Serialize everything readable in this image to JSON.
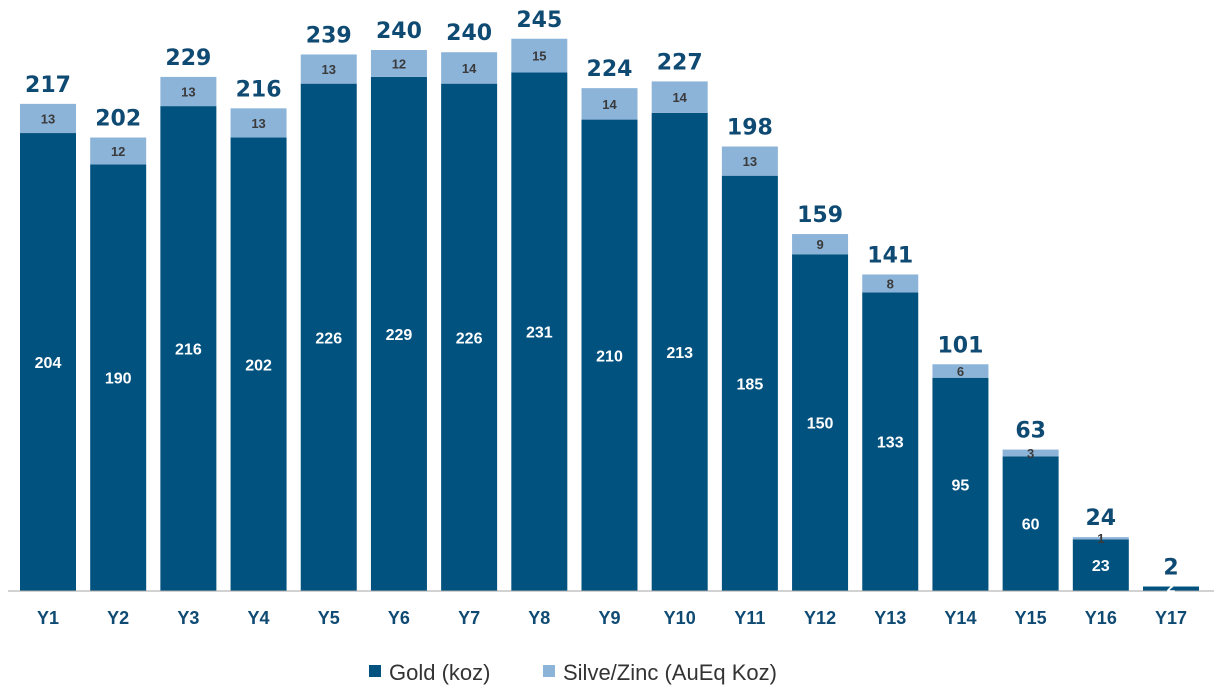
{
  "chart_data": {
    "type": "bar",
    "stacked": true,
    "categories": [
      "Y1",
      "Y2",
      "Y3",
      "Y4",
      "Y5",
      "Y6",
      "Y7",
      "Y8",
      "Y9",
      "Y10",
      "Y11",
      "Y12",
      "Y13",
      "Y14",
      "Y15",
      "Y16",
      "Y17"
    ],
    "series": [
      {
        "name": "Gold (koz)",
        "color": "#02527f",
        "values": [
          204,
          190,
          216,
          202,
          226,
          229,
          226,
          231,
          210,
          213,
          185,
          150,
          133,
          95,
          60,
          23,
          2
        ]
      },
      {
        "name": "Silve/Zinc (AuEq Koz)",
        "color": "#8cb4d9",
        "values": [
          13,
          12,
          13,
          13,
          13,
          12,
          14,
          15,
          14,
          14,
          13,
          9,
          8,
          6,
          3,
          1,
          0
        ]
      }
    ],
    "totals": [
      217,
      202,
      229,
      216,
      239,
      240,
      240,
      245,
      224,
      227,
      198,
      159,
      141,
      101,
      63,
      24,
      2
    ],
    "title": "",
    "xlabel": "",
    "ylabel": "",
    "ylim": [
      0,
      250
    ],
    "grid": false,
    "legend": "bottom-center",
    "colors": {
      "total_label": "#0f4a73",
      "axis": "#a6a6a6"
    }
  }
}
